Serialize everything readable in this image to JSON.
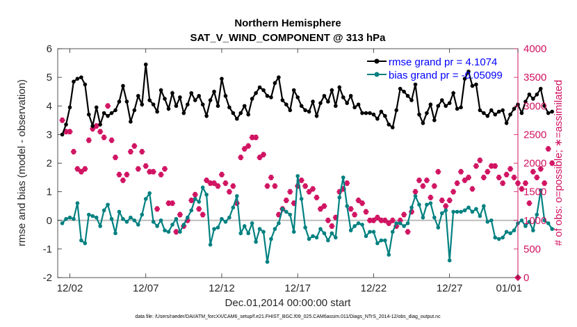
{
  "chart_data": {
    "type": "line",
    "title": "Northern Hemisphere",
    "subtitle": "SAT_V_WIND_COMPONENT @ 313 hPa",
    "xlabel": "Dec.01,2014 00:00:00 start",
    "ylabel": "rmse and bias (model - observation)",
    "ylabel_right": "# of obs: o=possible; ∗=assimilated",
    "footnote": "data file: /Users/raeder/DAI/ATM_forcXX/CAM6_setup/f.e21.FHIST_BGC.f09_025.CAM6assim.011/Diags_NTrS_2014-12/obs_diag_output.nc",
    "xlim": [
      0.7,
      31.0
    ],
    "ylim": [
      -2,
      6
    ],
    "ylim_right": [
      0,
      4000
    ],
    "x_ticks": [
      1.5,
      6.5,
      11.5,
      16.5,
      21.5,
      26.5,
      31.0
    ],
    "x_tick_labels": [
      "12/02",
      "12/07",
      "12/12",
      "12/17",
      "12/22",
      "12/27",
      "01/01"
    ],
    "y_ticks": [
      -2,
      -1,
      0,
      1,
      2,
      3,
      4,
      5,
      6
    ],
    "y_tick_labels": [
      "-2",
      "-1",
      "0",
      "1",
      "2",
      "3",
      "4",
      "5",
      "6"
    ],
    "y_ticks_right": [
      0,
      500,
      1000,
      1500,
      2000,
      2500,
      3000,
      3500,
      4000
    ],
    "y_tick_labels_right": [
      "0",
      "500",
      "1000",
      "1500",
      "2000",
      "2500",
      "3000",
      "3500",
      "4000"
    ],
    "legend": {
      "placement": "top-right",
      "entries": [
        "rmse grand pr = 4.1074",
        "bias grand pr = -0.05099"
      ]
    },
    "colors": {
      "rmse": "#000000",
      "bias": "#008080",
      "obs": "#d01060",
      "zero_line": "#bdbdbd"
    },
    "time_step_days": 0.25,
    "series": [
      {
        "name": "rmse",
        "values": [
          3.0,
          3.35,
          3.95,
          4.85,
          4.95,
          5.0,
          4.75,
          3.7,
          3.3,
          3.95,
          3.35,
          3.75,
          3.65,
          3.75,
          3.85,
          4.15,
          4.7,
          4.15,
          3.45,
          3.85,
          4.35,
          4.05,
          5.45,
          4.2,
          4.05,
          3.8,
          4.55,
          4.25,
          3.9,
          4.45,
          4.0,
          4.3,
          3.75,
          4.05,
          4.45,
          4.2,
          4.35,
          4.05,
          3.65,
          4.2,
          4.5,
          4.0,
          4.95,
          4.35,
          3.95,
          3.75,
          3.55,
          3.75,
          4.0,
          3.7,
          4.25,
          4.45,
          4.65,
          4.55,
          4.35,
          4.3,
          4.8,
          5.0,
          4.2,
          4.05,
          3.85,
          4.55,
          4.3,
          4.0,
          3.85,
          3.8,
          4.15,
          3.65,
          4.1,
          4.35,
          4.15,
          4.55,
          4.0,
          4.65,
          4.3,
          4.1,
          4.35,
          3.95,
          4.05,
          3.75,
          3.75,
          3.75,
          3.7,
          3.55,
          3.8,
          3.65,
          3.35,
          3.25,
          3.85,
          4.6,
          4.5,
          4.35,
          4.2,
          4.75,
          3.7,
          3.4,
          3.75,
          4.05,
          3.5,
          4.0,
          4.2,
          4.0,
          4.1,
          4.45,
          3.9,
          3.95,
          4.95,
          5.2,
          4.7,
          4.75,
          3.85,
          3.75,
          3.65,
          3.85,
          3.7,
          3.8,
          3.85,
          3.4,
          3.7,
          3.9,
          4.05,
          3.75,
          4.15,
          4.4,
          4.25,
          4.4,
          4.6,
          4.0,
          3.75,
          3.8
        ]
      },
      {
        "name": "bias",
        "values": [
          -0.1,
          0.05,
          0.1,
          0.05,
          0.6,
          -0.7,
          -0.8,
          0.2,
          0.15,
          0.1,
          -0.2,
          0.35,
          0.55,
          0.05,
          -0.45,
          0.3,
          0.05,
          -0.05,
          0.1,
          0.0,
          -0.15,
          0.2,
          0.75,
          0.95,
          -0.05,
          -0.2,
          0.0,
          -0.35,
          -0.4,
          -0.15,
          0.05,
          -0.4,
          -0.15,
          0.1,
          0.35,
          0.75,
          0.65,
          1.15,
          0.9,
          -0.85,
          -0.3,
          -0.25,
          0.05,
          -0.05,
          0.1,
          0.45,
          0.85,
          -0.45,
          -0.2,
          -0.45,
          -0.1,
          -0.75,
          -0.3,
          -0.4,
          -1.45,
          -0.65,
          -0.3,
          -0.1,
          0.4,
          0.3,
          0.2,
          -0.4,
          1.55,
          0.75,
          -0.25,
          -0.65,
          -0.55,
          -0.6,
          -0.3,
          -0.45,
          -0.7,
          -0.45,
          -0.6,
          0.8,
          1.5,
          0.5,
          -0.35,
          -0.2,
          -0.1,
          -0.15,
          -0.55,
          -0.4,
          -0.4,
          -0.8,
          -0.7,
          -0.7,
          -1.2,
          -0.4,
          -0.1,
          -0.1,
          -0.2,
          -0.1,
          0.45,
          0.85,
          0.55,
          0.1,
          0.55,
          0.6,
          0.1,
          -0.25,
          0.25,
          0.35,
          -1.4,
          0.3,
          0.3,
          0.3,
          0.35,
          0.45,
          0.3,
          0.4,
          0.15,
          0.5,
          -0.05,
          0.0,
          -0.6,
          -0.65,
          -0.6,
          -0.4,
          -0.45,
          -0.35,
          -0.1,
          0.0,
          -0.2,
          -0.05,
          -0.35,
          0.2,
          1.05,
          0.0,
          -0.1,
          -0.3
        ]
      },
      {
        "name": "obs_possible",
        "axis": "right",
        "values": [
          2750,
          2550,
          2550,
          2200,
          1900,
          1850,
          1900,
          2400,
          2600,
          2650,
          2550,
          2450,
          3000,
          2400,
          2100,
          1800,
          1700,
          1800,
          2200,
          2300,
          1900,
          2200,
          1950,
          1850,
          1850,
          1200,
          1800,
          1900,
          1300,
          1300,
          800,
          1100,
          900,
          1000,
          1350,
          1450,
          1200,
          1100,
          1700,
          1650,
          1650,
          1600,
          1800,
          1650,
          1500,
          1600,
          1300,
          2100,
          2250,
          2300,
          2450,
          2450,
          2100,
          2150,
          1600,
          1750,
          1600,
          1100,
          1200,
          1350,
          1500,
          1300,
          1600,
          1700,
          1600,
          1500,
          1550,
          1400,
          1200,
          1250,
          1000,
          900,
          1050,
          1500,
          1550,
          1650,
          1200,
          1100,
          1350,
          1300,
          1150,
          1000,
          1000,
          1050,
          1000,
          1000,
          950,
          1000,
          900,
          1000,
          1100,
          800,
          1150,
          1500,
          1700,
          1600,
          1700,
          1400,
          1600,
          1850,
          1350,
          1250,
          1350,
          1500,
          1650,
          1850,
          1700,
          1750,
          1550,
          1950,
          2050,
          1750,
          1850,
          1950,
          1950,
          1750,
          1650,
          1800,
          1900,
          1750,
          1650,
          1550,
          1650,
          1300,
          1850,
          1750,
          1900,
          1650,
          2250,
          2000
        ]
      },
      {
        "name": "obs_assimilated",
        "axis": "right",
        "values": [
          2750,
          2550,
          2550,
          2200,
          1900,
          1850,
          1900,
          2400,
          2600,
          2650,
          2550,
          2450,
          3000,
          2400,
          2100,
          1800,
          1700,
          1800,
          2200,
          2300,
          1900,
          2200,
          1950,
          1850,
          1850,
          1200,
          1800,
          1900,
          1300,
          1300,
          800,
          1100,
          900,
          1000,
          1350,
          1450,
          1200,
          1100,
          1700,
          1650,
          1650,
          1600,
          1800,
          1650,
          1500,
          1600,
          1300,
          2100,
          2250,
          2300,
          2450,
          2450,
          2100,
          2150,
          1600,
          1750,
          1600,
          1100,
          1200,
          1350,
          1500,
          1300,
          1600,
          1700,
          1600,
          1500,
          1550,
          1400,
          1200,
          1250,
          1000,
          900,
          1050,
          1500,
          1550,
          1650,
          1200,
          1100,
          1350,
          1300,
          1150,
          1000,
          1000,
          1050,
          1000,
          1000,
          950,
          1000,
          900,
          1000,
          1100,
          800,
          1150,
          1500,
          1700,
          1600,
          1700,
          1400,
          1600,
          1850,
          1350,
          1250,
          1350,
          1500,
          1650,
          1850,
          1700,
          1750,
          1550,
          1950,
          2050,
          1750,
          1850,
          1950,
          1950,
          1750,
          1650,
          1800,
          1900,
          1750,
          1650,
          1550,
          1650,
          1300,
          1850,
          1750,
          1900,
          1650,
          2250,
          2000
        ]
      }
    ]
  }
}
